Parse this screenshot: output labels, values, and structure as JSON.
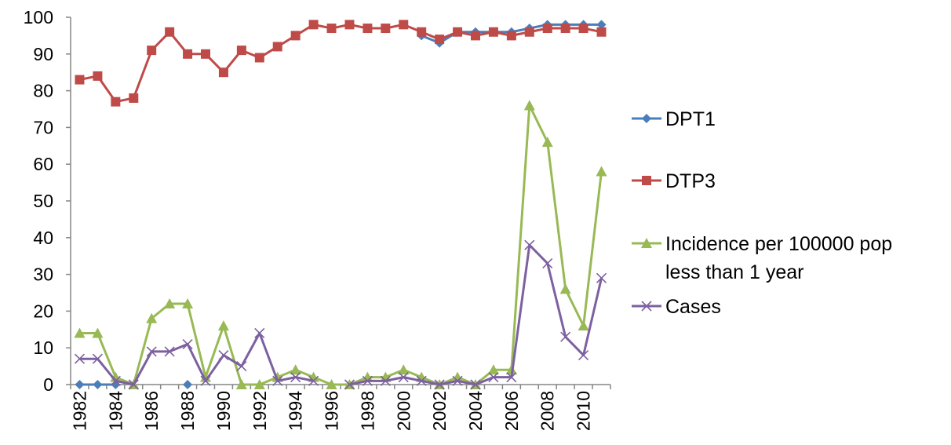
{
  "chart_data": {
    "type": "line",
    "x": [
      1982,
      1983,
      1984,
      1985,
      1986,
      1987,
      1988,
      1989,
      1990,
      1991,
      1992,
      1993,
      1994,
      1995,
      1996,
      1997,
      1998,
      1999,
      2000,
      2001,
      2002,
      2003,
      2004,
      2005,
      2006,
      2007,
      2008,
      2009,
      2010,
      2011
    ],
    "xticks": [
      "1982",
      "1984",
      "1986",
      "1988",
      "1990",
      "1992",
      "1994",
      "1996",
      "1998",
      "2000",
      "2002",
      "2004",
      "2006",
      "2008",
      "2010"
    ],
    "yticks": [
      "0",
      "10",
      "20",
      "30",
      "40",
      "50",
      "60",
      "70",
      "80",
      "90",
      "100"
    ],
    "ylim": [
      0,
      100
    ],
    "legend_position": "right",
    "grid": false,
    "series": [
      {
        "name": "DPT1",
        "color": "#4a7ebb",
        "marker": "diamond",
        "values": [
          0,
          0,
          0,
          null,
          null,
          null,
          0,
          null,
          null,
          null,
          null,
          null,
          null,
          null,
          null,
          null,
          null,
          null,
          null,
          95,
          93,
          96,
          96,
          96,
          96,
          97,
          98,
          98,
          98,
          98
        ]
      },
      {
        "name": "DTP3",
        "color": "#be4b48",
        "marker": "square",
        "values": [
          83,
          84,
          77,
          78,
          91,
          96,
          90,
          90,
          85,
          91,
          89,
          92,
          95,
          98,
          97,
          98,
          97,
          97,
          98,
          96,
          94,
          96,
          95,
          96,
          95,
          96,
          97,
          97,
          97,
          96
        ]
      },
      {
        "name": "Incidence per 100000 pop less than 1 year",
        "name_lines": [
          "Incidence per 100000 pop",
          "less than 1 year"
        ],
        "color": "#98b954",
        "marker": "triangle",
        "values": [
          14,
          14,
          2,
          0,
          18,
          22,
          22,
          2,
          16,
          0,
          0,
          2,
          4,
          2,
          0,
          0,
          2,
          2,
          4,
          2,
          0,
          2,
          0,
          4,
          4,
          76,
          66,
          26,
          16,
          58
        ]
      },
      {
        "name": "Cases",
        "color": "#7d60a0",
        "marker": "x",
        "values": [
          7,
          7,
          1,
          0,
          9,
          9,
          11,
          1,
          8,
          5,
          14,
          1,
          2,
          1,
          null,
          0,
          1,
          1,
          2,
          1,
          0,
          1,
          0,
          2,
          2,
          38,
          33,
          13,
          8,
          29
        ]
      }
    ]
  }
}
